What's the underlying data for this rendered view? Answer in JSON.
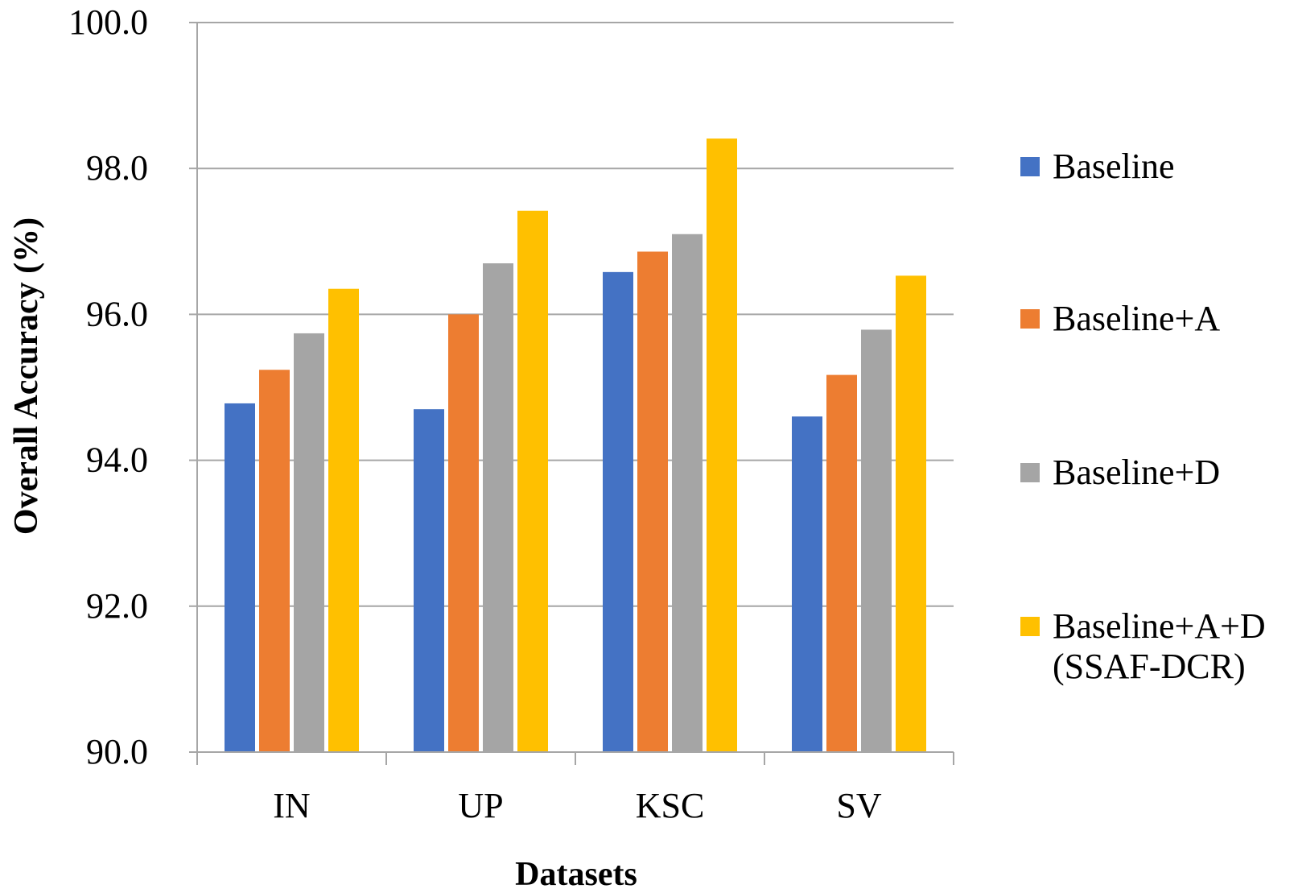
{
  "chart_data": {
    "type": "bar",
    "title": "",
    "xlabel": "Datasets",
    "ylabel": "Overall Accuracy (%)",
    "ylim": [
      90.0,
      100.0
    ],
    "ytick_step": 2.0,
    "ytick_decimals": 1,
    "grid": true,
    "legend_position": "right",
    "categories": [
      "IN",
      "UP",
      "KSC",
      "SV"
    ],
    "series": [
      {
        "name": "Baseline",
        "label_lines": [
          "Baseline"
        ],
        "color": "#4472C4",
        "values": [
          94.78,
          94.7,
          96.58,
          94.6
        ]
      },
      {
        "name": "Baseline+A",
        "label_lines": [
          "Baseline+A"
        ],
        "color": "#ED7D31",
        "values": [
          95.24,
          96.0,
          96.86,
          95.17
        ]
      },
      {
        "name": "Baseline+D",
        "label_lines": [
          "Baseline+D"
        ],
        "color": "#A5A5A5",
        "values": [
          95.74,
          96.7,
          97.1,
          95.79
        ]
      },
      {
        "name": "Baseline+A+D (SSAF-DCR)",
        "label_lines": [
          "Baseline+A+D",
          "(SSAF-DCR)"
        ],
        "color": "#FFC000",
        "values": [
          96.35,
          97.42,
          98.41,
          96.53
        ]
      }
    ]
  }
}
